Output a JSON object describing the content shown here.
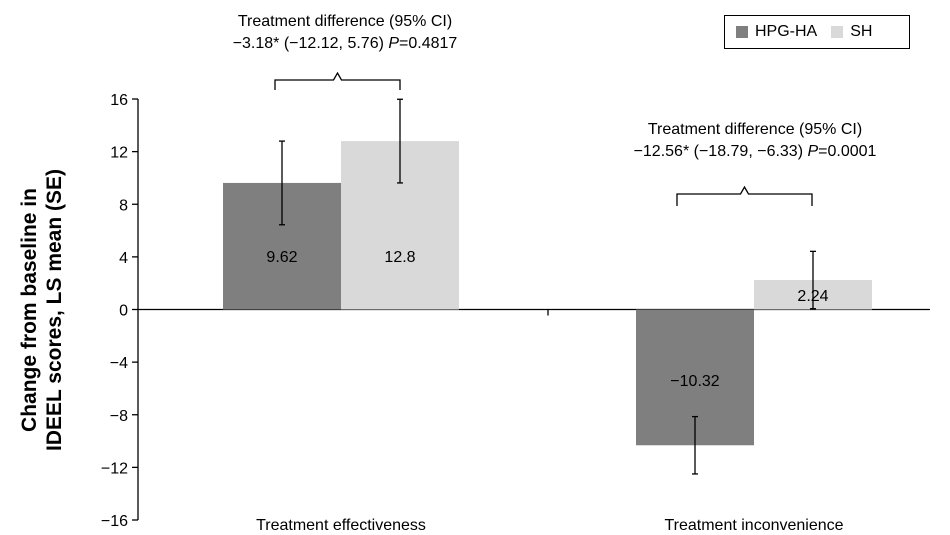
{
  "chart_data": {
    "type": "bar",
    "categories": [
      "Treatment effectiveness",
      "Treatment inconvenience"
    ],
    "series": [
      {
        "name": "HPG-HA",
        "values": [
          9.62,
          -10.32
        ],
        "se": [
          3.18,
          2.18
        ],
        "color": "#7f7f7f"
      },
      {
        "name": "SH",
        "values": [
          12.8,
          2.24
        ],
        "se": [
          3.18,
          2.18
        ],
        "color": "#d9d9d9"
      }
    ],
    "value_labels": [
      [
        "9.62",
        "−10.32"
      ],
      [
        "12.8",
        "2.24"
      ]
    ],
    "ylabel_lines": [
      "Change from baseline in",
      "IDEEL scores, LS mean (SE)"
    ],
    "ylim": [
      -16,
      16
    ],
    "yticks": [
      16,
      12,
      8,
      4,
      0,
      -4,
      -8,
      -12,
      -16
    ],
    "ytick_labels": [
      "16",
      "12",
      "8",
      "4",
      "0",
      "−4",
      "−8",
      "−12",
      "−16"
    ],
    "legend_position": "top-right",
    "grid": false,
    "annotations": [
      {
        "line1": "Treatment difference (95% CI)",
        "line2_prefix": "−3.18* (−12.12, 5.76) ",
        "p_label": "P",
        "p_value": "=0.4817"
      },
      {
        "line1": "Treatment difference (95% CI)",
        "line2_prefix": "−12.56* (−18.79, −6.33) ",
        "p_label": "P",
        "p_value": "=0.0001"
      }
    ]
  }
}
